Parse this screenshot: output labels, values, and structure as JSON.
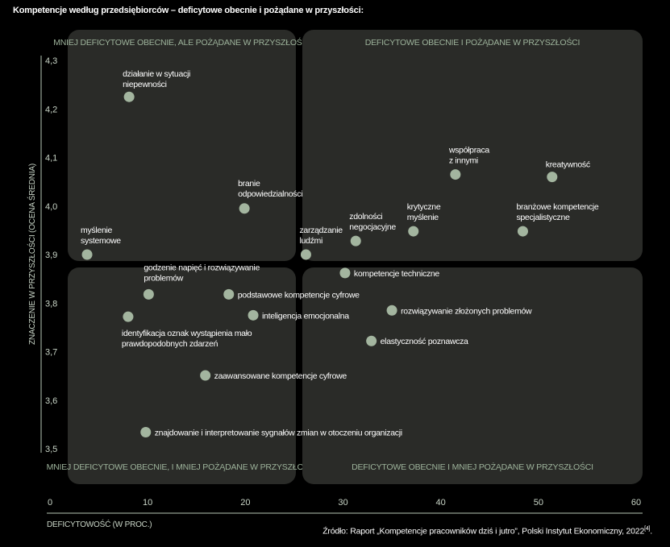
{
  "title": "Kompetencje według przedsiębiorców – deficytowe obecnie i pożądane w przyszłości:",
  "source": {
    "text": "Źródło: Raport „Kompetencje pracowników dziś i jutro”, Polski Instytut Ekonomiczny, 2022",
    "ref": "[4]",
    "end": "."
  },
  "colors": {
    "background": "#000000",
    "quadrant": "#2a2b28",
    "point": "#a3b59f",
    "quadrant_label": "#9db39b"
  },
  "chart_data": {
    "type": "scatter",
    "xlabel": "DEFICYTOWOŚĆ (W PROC.)",
    "ylabel": "ZNACZENIE W PRZYSZŁOŚCI (OCENA ŚREDNIA)",
    "xlim": [
      0,
      60
    ],
    "ylim": [
      3.5,
      4.3
    ],
    "x_ticks": [
      "0",
      "10",
      "20",
      "30",
      "40",
      "50",
      "60"
    ],
    "y_ticks": [
      "4,3",
      "4,2",
      "4,1",
      "4,0",
      "3,9",
      "3,8",
      "3,7",
      "3,6",
      "3,5"
    ],
    "x_divider": 25.5,
    "y_divider": 3.88,
    "quadrants": [
      "MNIEJ DEFICYTOWE OBECNIE, ALE POŻĄDANE W PRZYSZŁOŚCI",
      "DEFICYTOWE OBECNIE I POŻĄDANE W PRZYSZŁOŚCI",
      "MNIEJ DEFICYTOWE OBECNIE, I MNIEJ POŻĄDANE W PRZYSZŁOŚCI",
      "DEFICYTOWE OBECNIE I MNIEJ POŻĄDANE W PRZYSZŁOŚCI"
    ],
    "points": [
      {
        "label": [
          "działanie w sytuacji",
          "niepewności"
        ],
        "x": 8.1,
        "y": 4.225
      },
      {
        "label": [
          "branie",
          "odpowiedzialności"
        ],
        "x": 19.9,
        "y": 3.995
      },
      {
        "label": [
          "myślenie",
          "systemowe"
        ],
        "x": 3.8,
        "y": 3.9
      },
      {
        "label": [
          "współpraca",
          "z innymi"
        ],
        "x": 41.5,
        "y": 4.065
      },
      {
        "label": [
          "kreatywność"
        ],
        "x": 51.4,
        "y": 4.06
      },
      {
        "label": [
          "krytyczne",
          "myślenie"
        ],
        "x": 37.2,
        "y": 3.948
      },
      {
        "label": [
          "branżowe kompetencje",
          "specjalistyczne"
        ],
        "x": 48.4,
        "y": 3.948
      },
      {
        "label": [
          "zdolności",
          "negocjacyjne"
        ],
        "x": 31.3,
        "y": 3.928
      },
      {
        "label": [
          "zarządzanie",
          "ludźmi"
        ],
        "x": 26.2,
        "y": 3.9
      },
      {
        "label": [
          "kompetencje techniczne"
        ],
        "x": 30.2,
        "y": 3.862
      },
      {
        "label": [
          "godzenie napięć i rozwiązywanie",
          "problemów"
        ],
        "x": 10.1,
        "y": 3.818
      },
      {
        "label": [
          "podstawowe kompetencje cyfrowe"
        ],
        "x": 18.3,
        "y": 3.818
      },
      {
        "label": [
          "rozwiązywanie złożonych problemów"
        ],
        "x": 35.0,
        "y": 3.785
      },
      {
        "label": [
          "inteligencja emocjonalna"
        ],
        "x": 20.8,
        "y": 3.775
      },
      {
        "label": [
          "identyfikacja oznak wystąpienia mało",
          "prawdopodobnych zdarzeń"
        ],
        "x": 8.0,
        "y": 3.772
      },
      {
        "label": [
          "elastyczność poznawcza"
        ],
        "x": 32.9,
        "y": 3.722
      },
      {
        "label": [
          "zaawansowane kompetencje cyfrowe"
        ],
        "x": 15.9,
        "y": 3.651
      },
      {
        "label": [
          "znajdowanie i interpretowanie sygnałów zmian w otoczeniu organizacji"
        ],
        "x": 9.8,
        "y": 3.534
      }
    ]
  }
}
